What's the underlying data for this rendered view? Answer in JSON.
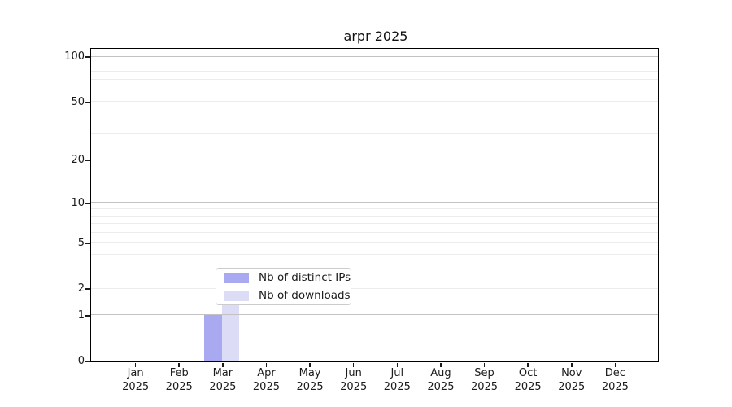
{
  "chart_data": {
    "type": "bar",
    "title": "arpr 2025",
    "categories": [
      "Jan 2025",
      "Feb 2025",
      "Mar 2025",
      "Apr 2025",
      "May 2025",
      "Jun 2025",
      "Jul 2025",
      "Aug 2025",
      "Sep 2025",
      "Oct 2025",
      "Nov 2025",
      "Dec 2025"
    ],
    "series": [
      {
        "name": "Nb of distinct IPs",
        "color": "#a9a9f1",
        "values": [
          0,
          0,
          1,
          0,
          0,
          0,
          0,
          0,
          0,
          0,
          0,
          0
        ]
      },
      {
        "name": "Nb of downloads",
        "color": "#dcdcf7",
        "values": [
          0,
          0,
          2,
          0,
          0,
          0,
          0,
          0,
          0,
          0,
          0,
          0
        ]
      }
    ],
    "y_scale": "log1p",
    "ylim": [
      0,
      112
    ],
    "y_ticks": [
      0,
      1,
      2,
      5,
      10,
      20,
      50,
      100
    ],
    "y_major_gridlines": [
      1,
      10,
      100
    ],
    "y_minor_gridlines": [
      2,
      3,
      4,
      5,
      6,
      7,
      8,
      9,
      20,
      30,
      40,
      50,
      60,
      70,
      80,
      90
    ],
    "grid": true,
    "legend_position": "lower center",
    "xlabel": "",
    "ylabel": ""
  }
}
